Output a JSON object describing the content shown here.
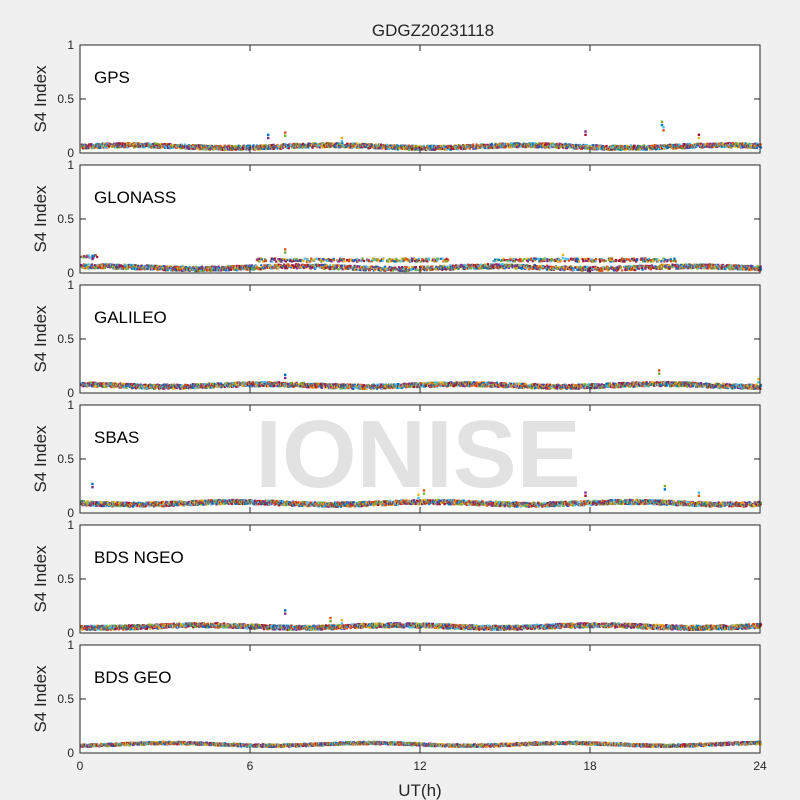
{
  "chart_data": {
    "type": "scatter",
    "title": "GDGZ20231118",
    "xlabel": "UT(h)",
    "ylabel": "S4 Index",
    "xlim": [
      0,
      24
    ],
    "ylim": [
      0,
      1
    ],
    "xticks": [
      0,
      6,
      12,
      18,
      24
    ],
    "yticks": [
      0,
      0.5,
      1
    ],
    "watermark": "IONISE",
    "series_colors": [
      "#0072BD",
      "#D95319",
      "#EDB120",
      "#7E2F8E",
      "#77AC30",
      "#4DBEEE",
      "#A2142F"
    ],
    "panels": [
      {
        "name": "GPS",
        "typical_level": 0.07,
        "noise": 0.02,
        "spikes": [
          {
            "x": 6.6,
            "y": 0.18
          },
          {
            "x": 7.2,
            "y": 0.2
          },
          {
            "x": 9.2,
            "y": 0.15
          },
          {
            "x": 17.8,
            "y": 0.21
          },
          {
            "x": 20.5,
            "y": 0.3
          },
          {
            "x": 20.55,
            "y": 0.25
          },
          {
            "x": 21.8,
            "y": 0.18
          }
        ]
      },
      {
        "name": "GLONASS",
        "typical_level": 0.06,
        "noise": 0.02,
        "elevated_segments": [
          {
            "x0": 0.0,
            "x1": 0.6,
            "y": 0.16
          },
          {
            "x0": 6.2,
            "x1": 13.0,
            "y": 0.13
          },
          {
            "x0": 14.5,
            "x1": 21.0,
            "y": 0.13
          }
        ],
        "spikes": [
          {
            "x": 0.4,
            "y": 0.17
          },
          {
            "x": 7.2,
            "y": 0.23
          },
          {
            "x": 17.0,
            "y": 0.18
          }
        ]
      },
      {
        "name": "GALILEO",
        "typical_level": 0.08,
        "noise": 0.02,
        "spikes": [
          {
            "x": 7.2,
            "y": 0.18
          },
          {
            "x": 20.4,
            "y": 0.22
          },
          {
            "x": 23.9,
            "y": 0.14
          }
        ]
      },
      {
        "name": "SBAS",
        "typical_level": 0.1,
        "noise": 0.02,
        "spikes": [
          {
            "x": 0.4,
            "y": 0.28
          },
          {
            "x": 12.1,
            "y": 0.22
          },
          {
            "x": 11.9,
            "y": 0.18
          },
          {
            "x": 17.8,
            "y": 0.2
          },
          {
            "x": 20.6,
            "y": 0.26
          },
          {
            "x": 21.8,
            "y": 0.2
          }
        ]
      },
      {
        "name": "BDS NGEO",
        "typical_level": 0.07,
        "noise": 0.02,
        "spikes": [
          {
            "x": 7.2,
            "y": 0.22
          },
          {
            "x": 8.8,
            "y": 0.15
          },
          {
            "x": 9.2,
            "y": 0.13
          }
        ]
      },
      {
        "name": "BDS GEO",
        "typical_level": 0.09,
        "noise": 0.012,
        "spikes": []
      }
    ]
  }
}
